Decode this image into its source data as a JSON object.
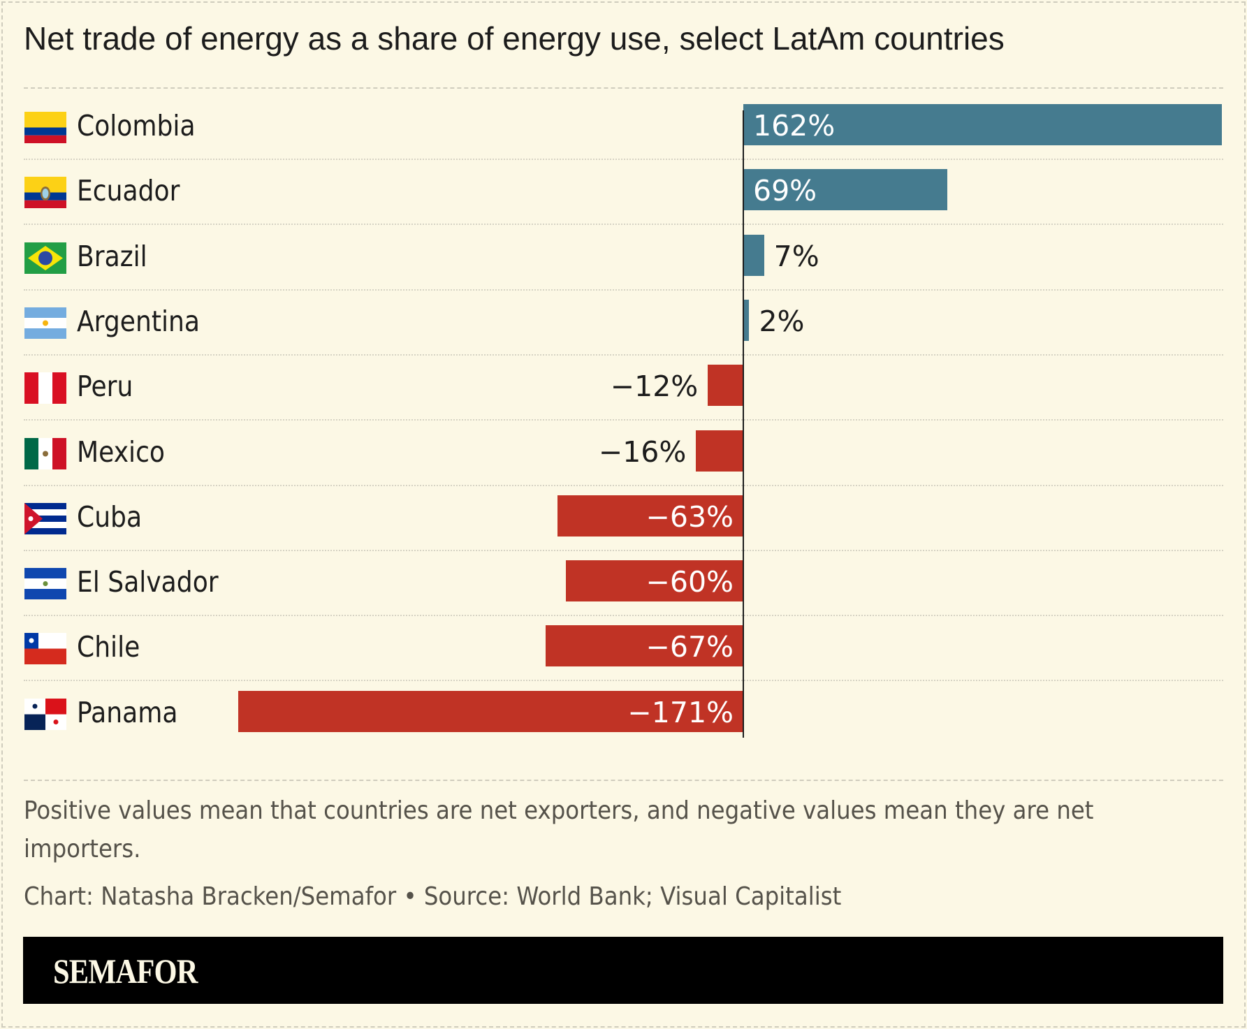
{
  "title": "Net trade of energy as a share of energy use, select LatAm countries",
  "footnote_line1": "Positive values mean that countries are net exporters, and negative values mean they are net",
  "footnote_line2": "importers.",
  "credit": "Chart: Natasha Bracken/Semafor • Source: World Bank; Visual Capitalist",
  "brand": "SEMAFOR",
  "colors": {
    "positive": "#457b8f",
    "negative": "#c03325",
    "background": "#fcf8e5"
  },
  "chart_data": {
    "type": "bar",
    "orientation": "horizontal",
    "title": "Net trade of energy as a share of energy use, select LatAm countries",
    "categories": [
      "Colombia",
      "Ecuador",
      "Brazil",
      "Argentina",
      "Peru",
      "Mexico",
      "Cuba",
      "El Salvador",
      "Chile",
      "Panama"
    ],
    "values": [
      162,
      69,
      7,
      2,
      -12,
      -16,
      -63,
      -60,
      -67,
      -171
    ],
    "labels": [
      "162%",
      "69%",
      "7%",
      "2%",
      "−12%",
      "−16%",
      "−63%",
      "−60%",
      "−67%",
      "−171%"
    ],
    "flags": [
      "colombia-flag",
      "ecuador-flag",
      "brazil-flag",
      "argentina-flag",
      "peru-flag",
      "mexico-flag",
      "cuba-flag",
      "el-salvador-flag",
      "chile-flag",
      "panama-flag"
    ],
    "unit": "%",
    "grid": false
  }
}
